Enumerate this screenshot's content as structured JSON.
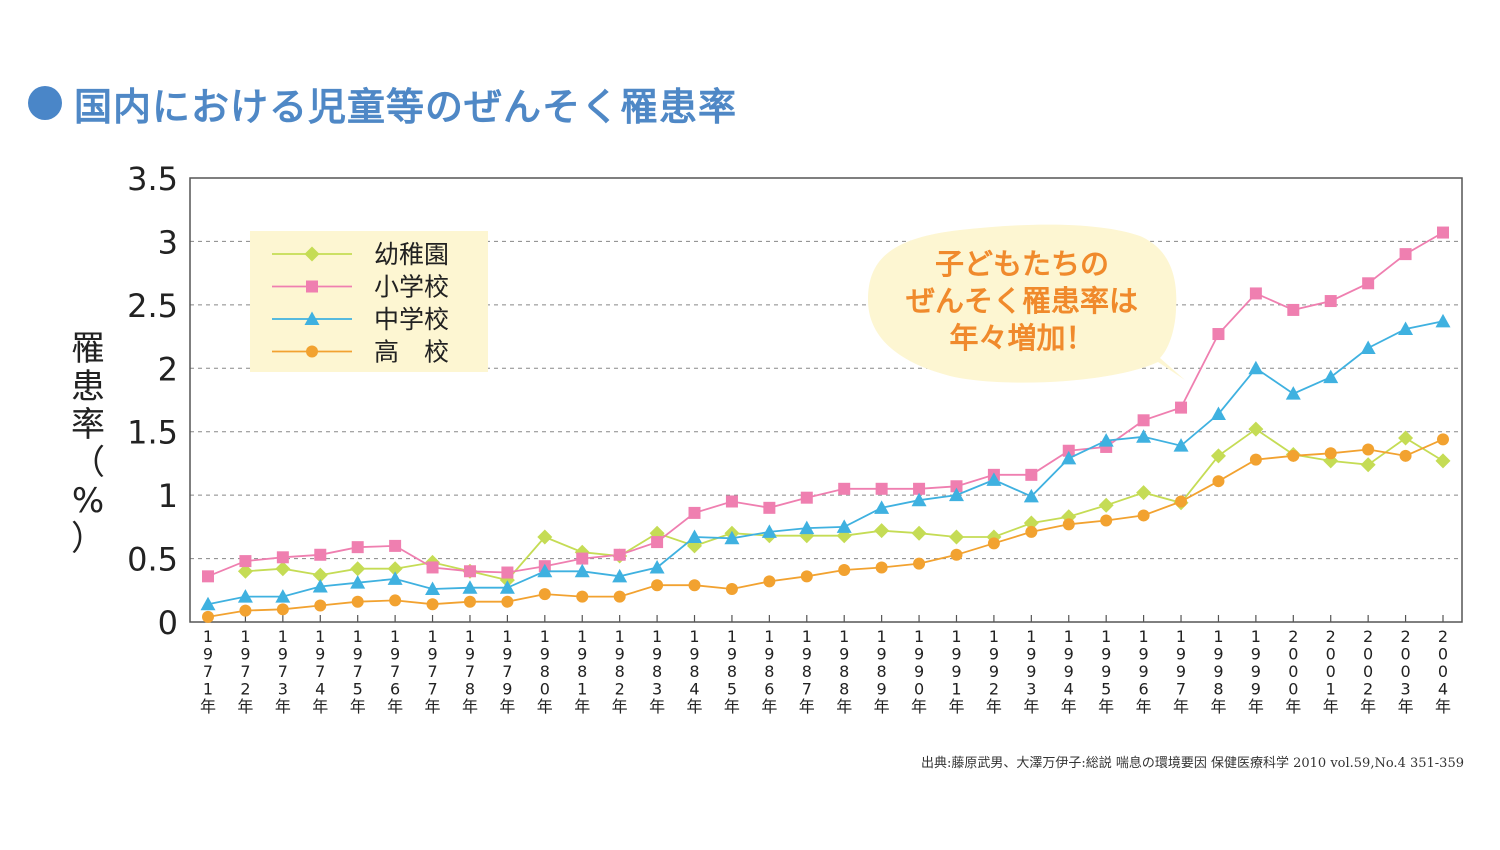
{
  "title": "国内における児童等のぜんそく罹患率",
  "source": "出典:藤原武男、大澤万伊子:総説 喘息の環境要因 保健医療科学 2010 vol.59,No.4 351-359",
  "callout": {
    "lines": [
      "子どもたちの",
      "ぜんそく罹患率は",
      "年々増加！"
    ]
  },
  "chart_data": {
    "type": "line",
    "ylabel": "罹患率（%）",
    "ylim": [
      0,
      3.5
    ],
    "yticks": [
      "0",
      "0.5",
      "1",
      "1.5",
      "2",
      "2.5",
      "3",
      "3.5"
    ],
    "categories": [
      "1971年",
      "1972年",
      "1973年",
      "1974年",
      "1975年",
      "1976年",
      "1977年",
      "1978年",
      "1979年",
      "1980年",
      "1981年",
      "1982年",
      "1983年",
      "1984年",
      "1985年",
      "1986年",
      "1987年",
      "1988年",
      "1989年",
      "1990年",
      "1991年",
      "1992年",
      "1993年",
      "1994年",
      "1995年",
      "1996年",
      "1997年",
      "1998年",
      "1999年",
      "2000年",
      "2001年",
      "2002年",
      "2003年",
      "2004年"
    ],
    "series": [
      {
        "name": "幼稚園",
        "color": "#c5dc55",
        "marker": "diamond",
        "values": [
          null,
          0.4,
          0.42,
          0.37,
          0.42,
          0.42,
          0.47,
          0.4,
          0.33,
          0.67,
          0.55,
          0.52,
          0.7,
          0.6,
          0.7,
          0.68,
          0.68,
          0.68,
          0.72,
          0.7,
          0.67,
          0.67,
          0.78,
          0.83,
          0.92,
          1.02,
          0.94,
          1.31,
          1.52,
          1.32,
          1.27,
          1.24,
          1.45,
          1.27
        ]
      },
      {
        "name": "小学校",
        "color": "#ef7fb0",
        "marker": "square",
        "values": [
          0.36,
          0.48,
          0.51,
          0.53,
          0.59,
          0.6,
          0.43,
          0.4,
          0.39,
          0.44,
          0.5,
          0.53,
          0.63,
          0.86,
          0.95,
          0.9,
          0.98,
          1.05,
          1.05,
          1.05,
          1.07,
          1.16,
          1.16,
          1.35,
          1.38,
          1.59,
          1.69,
          2.27,
          2.59,
          2.46,
          2.53,
          2.67,
          2.9,
          3.07
        ]
      },
      {
        "name": "中学校",
        "color": "#3fb1e0",
        "marker": "triangle",
        "values": [
          0.14,
          0.2,
          0.2,
          0.28,
          0.31,
          0.34,
          0.26,
          0.27,
          0.27,
          0.4,
          0.4,
          0.36,
          0.43,
          0.67,
          0.66,
          0.71,
          0.74,
          0.75,
          0.9,
          0.96,
          1.0,
          1.12,
          0.99,
          1.29,
          1.43,
          1.46,
          1.39,
          1.64,
          2.0,
          1.8,
          1.93,
          2.16,
          2.31,
          2.37
        ]
      },
      {
        "name": "高　校",
        "color": "#f2a230",
        "marker": "circle",
        "values": [
          0.04,
          0.09,
          0.1,
          0.13,
          0.16,
          0.17,
          0.14,
          0.16,
          0.16,
          0.22,
          0.2,
          0.2,
          0.29,
          0.29,
          0.26,
          0.32,
          0.36,
          0.41,
          0.43,
          0.46,
          0.53,
          0.62,
          0.71,
          0.77,
          0.8,
          0.84,
          0.95,
          1.11,
          1.28,
          1.31,
          1.33,
          1.36,
          1.31,
          1.44
        ]
      }
    ]
  }
}
